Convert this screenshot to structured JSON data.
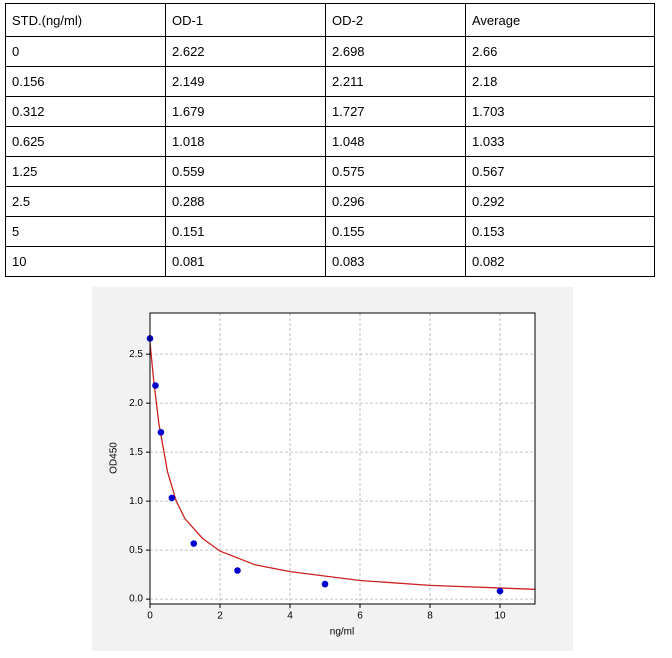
{
  "table": {
    "header": [
      "STD.(ng/ml)",
      "OD-1",
      "OD-2",
      "Average"
    ],
    "rows": [
      [
        "0",
        "2.622",
        "2.698",
        "2.66"
      ],
      [
        "0.156",
        "2.149",
        "2.211",
        "2.18"
      ],
      [
        "0.312",
        "1.679",
        "1.727",
        "1.703"
      ],
      [
        "0.625",
        "1.018",
        "1.048",
        "1.033"
      ],
      [
        "1.25",
        "0.559",
        "0.575",
        "0.567"
      ],
      [
        "2.5",
        "0.288",
        "0.296",
        "0.292"
      ],
      [
        "5",
        "0.151",
        "0.155",
        "0.153"
      ],
      [
        "10",
        "0.081",
        "0.083",
        "0.082"
      ]
    ]
  },
  "chart_data": {
    "type": "scatter",
    "xlabel": "ng/ml",
    "ylabel": "OD450",
    "xlim": [
      0,
      11
    ],
    "ylim": [
      -0.05,
      2.92
    ],
    "xticks": [
      0,
      2,
      4,
      6,
      8,
      10
    ],
    "yticks": [
      {
        "value": 0,
        "label": "0.0"
      },
      {
        "value": 0.5,
        "label": "0.5"
      },
      {
        "value": 1,
        "label": "1.0"
      },
      {
        "value": 1.5,
        "label": "1.5"
      },
      {
        "value": 2,
        "label": "2.0"
      },
      {
        "value": 2.5,
        "label": "2.5"
      }
    ],
    "grid": true,
    "series": [
      {
        "style": "points",
        "color": "#0000cc",
        "x": [
          0,
          0.156,
          0.312,
          0.625,
          1.25,
          2.5,
          5,
          10
        ],
        "values": [
          2.66,
          2.18,
          1.703,
          1.033,
          0.567,
          0.292,
          0.153,
          0.082
        ]
      },
      {
        "style": "line",
        "color": "#cc2222",
        "x": [
          0,
          0.1,
          0.25,
          0.5,
          0.75,
          1,
          1.5,
          2,
          3,
          4,
          6,
          8,
          11
        ],
        "values": [
          2.62,
          2.25,
          1.8,
          1.3,
          1.0,
          0.82,
          0.62,
          0.49,
          0.35,
          0.28,
          0.19,
          0.14,
          0.1
        ]
      }
    ]
  }
}
